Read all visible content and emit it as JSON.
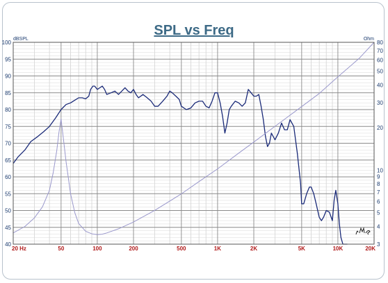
{
  "chart_data": {
    "type": "line",
    "title": "SPL vs Freq",
    "left_unit": "dBSPL",
    "right_unit": "Ohm",
    "xscale": "log",
    "xlim": [
      20,
      20000
    ],
    "ylim": [
      40,
      100
    ],
    "y2lim": [
      3,
      80
    ],
    "y2scale": "log",
    "grid": true,
    "x_ticks": [
      {
        "value": 20,
        "label": "20 Hz"
      },
      {
        "value": 50,
        "label": "50"
      },
      {
        "value": 100,
        "label": "100"
      },
      {
        "value": 200,
        "label": "200"
      },
      {
        "value": 500,
        "label": "500"
      },
      {
        "value": 1000,
        "label": "1K"
      },
      {
        "value": 2000,
        "label": "2K"
      },
      {
        "value": 5000,
        "label": "5K"
      },
      {
        "value": 10000,
        "label": "10K"
      },
      {
        "value": 20000,
        "label": "20K"
      }
    ],
    "y_ticks": [
      40,
      45,
      50,
      55,
      60,
      65,
      70,
      75,
      80,
      85,
      90,
      95,
      100
    ],
    "y2_ticks": [
      3,
      4,
      5,
      6,
      7,
      8,
      9,
      10,
      20,
      30,
      40,
      50,
      60,
      70,
      80
    ],
    "series": [
      {
        "axis": "left",
        "color": "#1a2a78",
        "x": [
          20,
          22,
          25,
          28,
          32,
          36,
          40,
          45,
          50,
          55,
          60,
          65,
          70,
          75,
          80,
          85,
          88,
          92,
          95,
          100,
          105,
          110,
          115,
          120,
          130,
          140,
          150,
          160,
          170,
          180,
          190,
          200,
          210,
          220,
          240,
          260,
          280,
          300,
          320,
          350,
          380,
          400,
          420,
          450,
          480,
          500,
          550,
          600,
          650,
          700,
          750,
          800,
          850,
          900,
          950,
          1000,
          1050,
          1100,
          1150,
          1200,
          1250,
          1300,
          1400,
          1500,
          1600,
          1700,
          1800,
          1900,
          2000,
          2100,
          2200,
          2300,
          2400,
          2500,
          2600,
          2700,
          2800,
          3000,
          3200,
          3400,
          3600,
          3800,
          4000,
          4300,
          4600,
          4900,
          5000,
          5200,
          5500,
          5800,
          6000,
          6300,
          6600,
          7000,
          7300,
          7600,
          8000,
          8500,
          9000,
          9300,
          9600,
          10000,
          10300,
          10600,
          11000,
          11500,
          12000
        ],
        "y": [
          64,
          66,
          68,
          70.5,
          72,
          73.5,
          75,
          77.5,
          80,
          81.5,
          82,
          82.8,
          83.5,
          83.5,
          83.2,
          84,
          86,
          87,
          87,
          86,
          86.5,
          87,
          86,
          84.5,
          85,
          85.5,
          84.5,
          85.5,
          86.5,
          85.5,
          85,
          86,
          84.5,
          83.5,
          84.5,
          83.5,
          82.5,
          81,
          81,
          82.5,
          84,
          85.5,
          85,
          84,
          83,
          81,
          80,
          80.5,
          82,
          82.5,
          82.5,
          81,
          80.5,
          82.5,
          85,
          85,
          82,
          78,
          73,
          76,
          80,
          81,
          82.5,
          82,
          81,
          82,
          86,
          85,
          84,
          84,
          84.5,
          81,
          77,
          72,
          69,
          70,
          73,
          71,
          73,
          76,
          74,
          74,
          77,
          75,
          67,
          58,
          52,
          52,
          55,
          57,
          57,
          55,
          52,
          48,
          47,
          48,
          50,
          49.5,
          47,
          53,
          56,
          52,
          46,
          42,
          40,
          40,
          40
        ]
      },
      {
        "axis": "right",
        "color": "#9a98cc",
        "x": [
          20,
          25,
          30,
          35,
          40,
          43,
          46,
          48,
          50,
          52,
          55,
          60,
          65,
          70,
          80,
          90,
          100,
          110,
          120,
          150,
          200,
          300,
          500,
          700,
          1000,
          1500,
          2000,
          3000,
          5000,
          7000,
          10000,
          15000,
          20000
        ],
        "y": [
          3.6,
          4.0,
          4.6,
          5.5,
          7.2,
          9.6,
          13.7,
          18.5,
          23,
          17.3,
          11.5,
          6.8,
          5.0,
          4.2,
          3.7,
          3.55,
          3.5,
          3.53,
          3.6,
          3.85,
          4.3,
          5.2,
          6.8,
          8.3,
          10.2,
          13.2,
          15.8,
          20.4,
          28.1,
          34.8,
          45.6,
          61.5,
          80
        ]
      }
    ],
    "annotation": "LMS"
  }
}
